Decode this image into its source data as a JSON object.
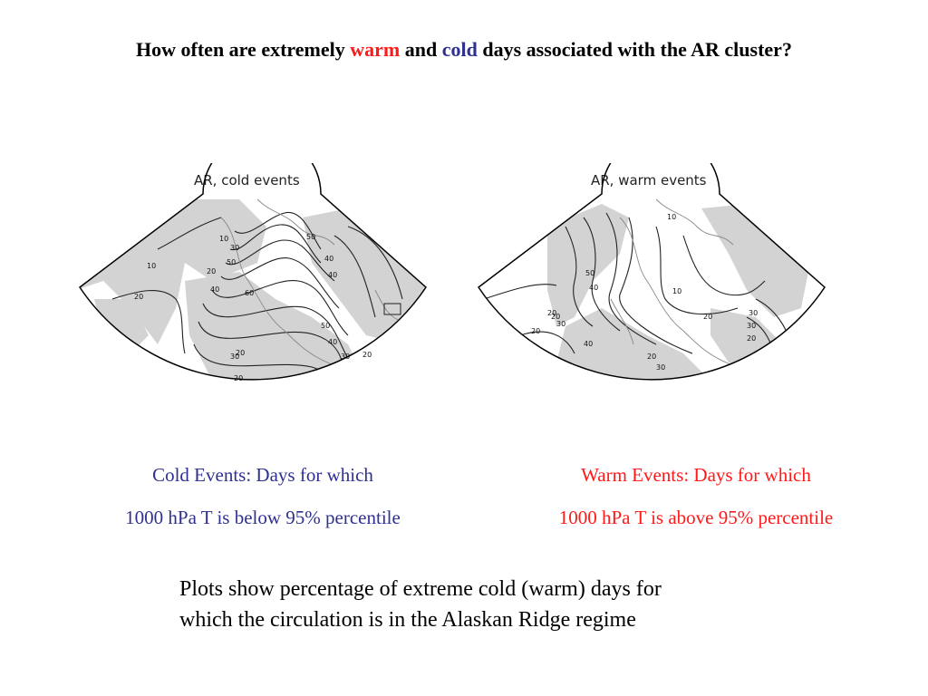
{
  "header": {
    "title_part1": "How often are extremely ",
    "title_warm": "warm",
    "title_part2": " and ",
    "title_cold": "cold",
    "title_part3": " days associated with the AR cluster?",
    "warm_color": "#ff1a1a",
    "cold_color": "#2e3192"
  },
  "maps": {
    "left": {
      "title": "AR, cold events",
      "contour_labels": [
        "10",
        "30",
        "50",
        "10",
        "20",
        "40",
        "60",
        "50",
        "40",
        "20",
        "30",
        "20",
        "50",
        "40",
        "40",
        "30",
        "20",
        "20"
      ]
    },
    "right": {
      "title": "AR, warm events",
      "contour_labels": [
        "50",
        "40",
        "30",
        "20",
        "10",
        "10",
        "20",
        "20",
        "30",
        "30",
        "40",
        "20",
        "30",
        "20",
        "20"
      ]
    }
  },
  "captions": {
    "cold_line1": "Cold Events: Days for which",
    "cold_line2": "1000 hPa T is below 95% percentile",
    "warm_line1": "Warm Events: Days for which",
    "warm_line2": "1000 hPa T is above 95% percentile"
  },
  "footer": {
    "note_line1": "Plots show percentage of extreme cold (warm) days for",
    "note_line2": "which the circulation is in the Alaskan Ridge regime"
  }
}
